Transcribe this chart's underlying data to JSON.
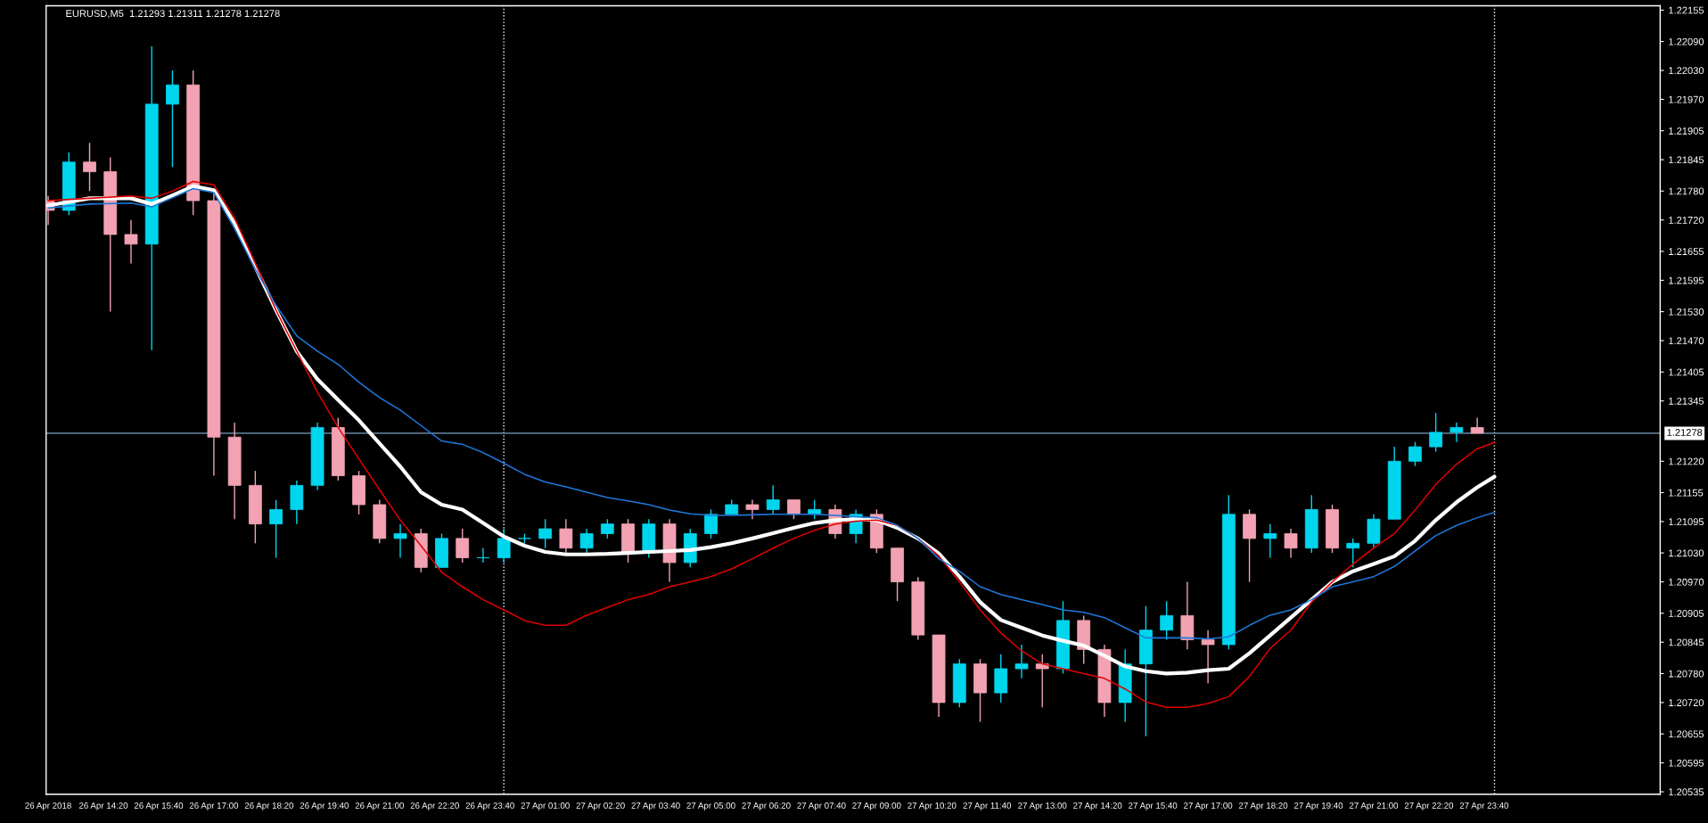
{
  "chart_data": {
    "type": "candlestick",
    "title": "EURUSD,M5  1.21293 1.21311 1.21278 1.21278",
    "x": [
      "2018-04-26T13:00",
      "2018-04-26T13:30",
      "2018-04-26T14:00",
      "2018-04-26T14:30",
      "2018-04-26T15:00",
      "2018-04-26T15:30",
      "2018-04-26T16:00",
      "2018-04-26T16:30",
      "2018-04-26T17:00",
      "2018-04-26T17:30",
      "2018-04-26T18:00",
      "2018-04-26T18:30",
      "2018-04-26T19:00",
      "2018-04-26T19:30",
      "2018-04-26T20:00",
      "2018-04-26T20:30",
      "2018-04-26T21:00",
      "2018-04-26T21:30",
      "2018-04-26T22:00",
      "2018-04-26T22:30",
      "2018-04-26T23:00",
      "2018-04-26T23:30",
      "2018-04-27T00:00",
      "2018-04-27T00:30",
      "2018-04-27T01:00",
      "2018-04-27T01:30",
      "2018-04-27T02:00",
      "2018-04-27T02:30",
      "2018-04-27T03:00",
      "2018-04-27T03:30",
      "2018-04-27T04:00",
      "2018-04-27T04:30",
      "2018-04-27T05:00",
      "2018-04-27T05:30",
      "2018-04-27T06:00",
      "2018-04-27T06:30",
      "2018-04-27T07:00",
      "2018-04-27T07:30",
      "2018-04-27T08:00",
      "2018-04-27T08:30",
      "2018-04-27T09:00",
      "2018-04-27T09:30",
      "2018-04-27T10:00",
      "2018-04-27T10:30",
      "2018-04-27T11:00",
      "2018-04-27T11:30",
      "2018-04-27T12:00",
      "2018-04-27T12:30",
      "2018-04-27T13:00",
      "2018-04-27T13:30",
      "2018-04-27T14:00",
      "2018-04-27T14:30",
      "2018-04-27T15:00",
      "2018-04-27T15:30",
      "2018-04-27T16:00",
      "2018-04-27T16:30",
      "2018-04-27T17:00",
      "2018-04-27T17:30",
      "2018-04-27T18:00",
      "2018-04-27T18:30",
      "2018-04-27T19:00",
      "2018-04-27T19:30",
      "2018-04-27T20:00",
      "2018-04-27T20:30",
      "2018-04-27T21:00",
      "2018-04-27T21:30",
      "2018-04-27T22:00",
      "2018-04-27T22:30",
      "2018-04-27T23:00",
      "2018-04-27T23:30"
    ],
    "ohlc": [
      [
        1.2176,
        1.2177,
        1.2171,
        1.2174
      ],
      [
        1.2174,
        1.2186,
        1.2173,
        1.2184
      ],
      [
        1.2184,
        1.2188,
        1.2178,
        1.2182
      ],
      [
        1.2182,
        1.2185,
        1.2153,
        1.2169
      ],
      [
        1.2169,
        1.2172,
        1.2163,
        1.2167
      ],
      [
        1.2167,
        1.2208,
        1.2145,
        1.2196
      ],
      [
        1.2196,
        1.2203,
        1.2183,
        1.22
      ],
      [
        1.22,
        1.2203,
        1.2173,
        1.2176
      ],
      [
        1.2176,
        1.2178,
        1.2119,
        1.2127
      ],
      [
        1.2127,
        1.213,
        1.211,
        1.2117
      ],
      [
        1.2117,
        1.212,
        1.2105,
        1.2109
      ],
      [
        1.2109,
        1.2114,
        1.2102,
        1.2112
      ],
      [
        1.2112,
        1.2118,
        1.2109,
        1.2117
      ],
      [
        1.2117,
        1.213,
        1.2116,
        1.2129
      ],
      [
        1.2129,
        1.2131,
        1.2118,
        1.2119
      ],
      [
        1.2119,
        1.212,
        1.2111,
        1.2113
      ],
      [
        1.2113,
        1.2114,
        1.2105,
        1.2106
      ],
      [
        1.2106,
        1.2109,
        1.2102,
        1.2107
      ],
      [
        1.2107,
        1.2108,
        1.2099,
        1.21
      ],
      [
        1.21,
        1.2107,
        1.21,
        1.2106
      ],
      [
        1.2106,
        1.2108,
        1.2101,
        1.2102
      ],
      [
        1.2102,
        1.2104,
        1.2101,
        1.2102
      ],
      [
        1.2102,
        1.2108,
        1.2101,
        1.2106
      ],
      [
        1.2106,
        1.2107,
        1.2105,
        1.2106
      ],
      [
        1.2106,
        1.211,
        1.2104,
        1.2108
      ],
      [
        1.2108,
        1.211,
        1.2103,
        1.2104
      ],
      [
        1.2104,
        1.2108,
        1.2103,
        1.2107
      ],
      [
        1.2107,
        1.211,
        1.2106,
        1.2109
      ],
      [
        1.2109,
        1.211,
        1.2101,
        1.2103
      ],
      [
        1.2103,
        1.211,
        1.2102,
        1.2109
      ],
      [
        1.2109,
        1.211,
        1.2097,
        1.2101
      ],
      [
        1.2101,
        1.2108,
        1.21,
        1.2107
      ],
      [
        1.2107,
        1.2112,
        1.2106,
        1.2111
      ],
      [
        1.2111,
        1.2114,
        1.2111,
        1.2113
      ],
      [
        1.2113,
        1.2114,
        1.211,
        1.2112
      ],
      [
        1.2112,
        1.2117,
        1.2111,
        1.2114
      ],
      [
        1.2114,
        1.2114,
        1.211,
        1.2111
      ],
      [
        1.2111,
        1.2114,
        1.211,
        1.2112
      ],
      [
        1.2112,
        1.2113,
        1.2106,
        1.2107
      ],
      [
        1.2107,
        1.2112,
        1.2105,
        1.2111
      ],
      [
        1.2111,
        1.2112,
        1.2103,
        1.2104
      ],
      [
        1.2104,
        1.2104,
        1.2093,
        1.2097
      ],
      [
        1.2097,
        1.2098,
        1.2085,
        1.2086
      ],
      [
        1.2086,
        1.2086,
        1.2069,
        1.2072
      ],
      [
        1.2072,
        1.2081,
        1.2071,
        1.208
      ],
      [
        1.208,
        1.2081,
        1.2068,
        1.2074
      ],
      [
        1.2074,
        1.2082,
        1.2072,
        1.2079
      ],
      [
        1.2079,
        1.2084,
        1.2077,
        1.208
      ],
      [
        1.208,
        1.2082,
        1.2071,
        1.2079
      ],
      [
        1.2079,
        1.2093,
        1.2078,
        1.2089
      ],
      [
        1.2089,
        1.209,
        1.208,
        1.2083
      ],
      [
        1.2083,
        1.2084,
        1.2069,
        1.2072
      ],
      [
        1.2072,
        1.2083,
        1.2068,
        1.208
      ],
      [
        1.208,
        1.2092,
        1.2065,
        1.2087
      ],
      [
        1.2087,
        1.2093,
        1.2085,
        1.209
      ],
      [
        1.209,
        1.2097,
        1.2083,
        1.2085
      ],
      [
        1.2085,
        1.2087,
        1.2076,
        1.2084
      ],
      [
        1.2084,
        1.2115,
        1.2083,
        1.2111
      ],
      [
        1.2111,
        1.2112,
        1.2097,
        1.2106
      ],
      [
        1.2106,
        1.2109,
        1.2102,
        1.2107
      ],
      [
        1.2107,
        1.2108,
        1.2102,
        1.2104
      ],
      [
        1.2104,
        1.2115,
        1.2103,
        1.2112
      ],
      [
        1.2112,
        1.2113,
        1.2103,
        1.2104
      ],
      [
        1.2104,
        1.2106,
        1.21,
        1.2105
      ],
      [
        1.2105,
        1.2111,
        1.2104,
        1.211
      ],
      [
        1.211,
        1.2125,
        1.211,
        1.2122
      ],
      [
        1.2122,
        1.2126,
        1.2121,
        1.2125
      ],
      [
        1.2125,
        1.2132,
        1.2124,
        1.2128
      ],
      [
        1.2128,
        1.213,
        1.2126,
        1.2129
      ],
      [
        1.2129,
        1.2131,
        1.21278,
        1.21278
      ]
    ],
    "colors": [
      "#f2a2b2",
      "#00d5ee",
      "#f2a2b2",
      "#f2a2b2",
      "#f2a2b2",
      "#00d5ee",
      "#00d5ee",
      "#f2a2b2",
      "#f2a2b2",
      "#f2a2b2",
      "#f2a2b2",
      "#00d5ee",
      "#00d5ee",
      "#00d5ee",
      "#f2a2b2",
      "#f2a2b2",
      "#f2a2b2",
      "#00d5ee",
      "#f2a2b2",
      "#00d5ee",
      "#f2a2b2",
      "#00d5ee",
      "#00d5ee",
      "#00d5ee",
      "#00d5ee",
      "#f2a2b2",
      "#00d5ee",
      "#00d5ee",
      "#f2a2b2",
      "#00d5ee",
      "#f2a2b2",
      "#00d5ee",
      "#00d5ee",
      "#00d5ee",
      "#f2a2b2",
      "#00d5ee",
      "#f2a2b2",
      "#00d5ee",
      "#f2a2b2",
      "#00d5ee",
      "#f2a2b2",
      "#f2a2b2",
      "#f2a2b2",
      "#f2a2b2",
      "#00d5ee",
      "#f2a2b2",
      "#00d5ee",
      "#00d5ee",
      "#f2a2b2",
      "#00d5ee",
      "#f2a2b2",
      "#f2a2b2",
      "#00d5ee",
      "#00d5ee",
      "#00d5ee",
      "#f2a2b2",
      "#f2a2b2",
      "#00d5ee",
      "#f2a2b2",
      "#00d5ee",
      "#f2a2b2",
      "#00d5ee",
      "#f2a2b2",
      "#00d5ee",
      "#00d5ee",
      "#00d5ee",
      "#00d5ee",
      "#00d5ee",
      "#00d5ee",
      "#f2a2b2"
    ],
    "series": [
      {
        "type": "line",
        "color": "#e00000",
        "x": [
          "2018-04-26T13:00",
          "2018-04-26T14:00",
          "2018-04-26T15:00",
          "2018-04-26T15:30",
          "2018-04-26T16:00",
          "2018-04-26T16:30",
          "2018-04-26T17:00",
          "2018-04-26T17:30",
          "2018-04-26T18:00",
          "2018-04-26T18:30",
          "2018-04-26T19:00",
          "2018-04-26T19:30",
          "2018-04-26T20:00",
          "2018-04-26T20:30",
          "2018-04-26T21:00",
          "2018-04-26T21:30",
          "2018-04-26T22:00",
          "2018-04-26T22:30",
          "2018-04-26T23:00",
          "2018-04-26T23:30",
          "2018-04-27T00:00",
          "2018-04-27T00:30",
          "2018-04-27T01:00",
          "2018-04-27T01:30",
          "2018-04-27T02:00",
          "2018-04-27T02:30",
          "2018-04-27T03:00",
          "2018-04-27T03:30",
          "2018-04-27T04:00",
          "2018-04-27T04:30",
          "2018-04-27T05:00",
          "2018-04-27T05:30",
          "2018-04-27T06:00",
          "2018-04-27T06:30",
          "2018-04-27T07:00",
          "2018-04-27T07:30",
          "2018-04-27T08:00",
          "2018-04-27T08:30",
          "2018-04-27T09:00",
          "2018-04-27T09:30",
          "2018-04-27T10:00",
          "2018-04-27T10:30",
          "2018-04-27T11:00",
          "2018-04-27T11:30",
          "2018-04-27T12:00",
          "2018-04-27T12:30",
          "2018-04-27T13:00",
          "2018-04-27T13:30",
          "2018-04-27T14:00",
          "2018-04-27T14:30",
          "2018-04-27T15:00",
          "2018-04-27T15:30",
          "2018-04-27T16:00",
          "2018-04-27T16:30",
          "2018-04-27T17:00",
          "2018-04-27T17:30",
          "2018-04-27T18:00",
          "2018-04-27T18:30",
          "2018-04-27T19:00",
          "2018-04-27T19:30",
          "2018-04-27T20:00",
          "2018-04-27T20:30",
          "2018-04-27T21:00",
          "2018-04-27T21:30",
          "2018-04-27T22:00",
          "2018-04-27T22:30",
          "2018-04-27T23:00",
          "2018-04-27T23:30",
          "2018-04-27T23:55"
        ],
        "values": [
          1.2176,
          1.21765,
          1.2177,
          1.21765,
          1.2178,
          1.218,
          1.21793,
          1.21724,
          1.2163,
          1.21533,
          1.21448,
          1.21363,
          1.2129,
          1.21225,
          1.21161,
          1.21098,
          1.21045,
          1.2099,
          1.2096,
          1.20933,
          1.20912,
          1.2089,
          1.2088,
          1.2088,
          1.20901,
          1.20917,
          1.20933,
          1.20944,
          1.2096,
          1.2097,
          1.20981,
          1.20997,
          1.21018,
          1.2104,
          1.2106,
          1.21077,
          1.2109,
          1.21096,
          1.21098,
          1.21087,
          1.2106,
          1.21024,
          1.2097,
          1.20912,
          1.20864,
          1.20827,
          1.208,
          1.2079,
          1.2078,
          1.2077,
          1.20748,
          1.20721,
          1.2071,
          1.2071,
          1.20718,
          1.20732,
          1.20774,
          1.20832,
          1.2087,
          1.20928,
          1.2097,
          1.21007,
          1.2104,
          1.2107,
          1.21119,
          1.21172,
          1.21214,
          1.21246,
          1.21259
        ]
      },
      {
        "type": "line",
        "color": "#ffffff",
        "x": [
          "2018-04-26T13:00",
          "2018-04-26T14:00",
          "2018-04-26T15:00",
          "2018-04-26T15:30",
          "2018-04-26T16:00",
          "2018-04-26T16:30",
          "2018-04-26T17:00",
          "2018-04-26T17:30",
          "2018-04-26T18:00",
          "2018-04-26T18:30",
          "2018-04-26T19:00",
          "2018-04-26T19:30",
          "2018-04-26T20:00",
          "2018-04-26T20:30",
          "2018-04-26T21:00",
          "2018-04-26T21:30",
          "2018-04-26T22:00",
          "2018-04-26T22:30",
          "2018-04-26T23:00",
          "2018-04-26T23:30",
          "2018-04-27T00:00",
          "2018-04-27T00:30",
          "2018-04-27T01:00",
          "2018-04-27T01:30",
          "2018-04-27T02:00",
          "2018-04-27T02:30",
          "2018-04-27T03:00",
          "2018-04-27T03:30",
          "2018-04-27T04:00",
          "2018-04-27T04:30",
          "2018-04-27T05:00",
          "2018-04-27T05:30",
          "2018-04-27T06:00",
          "2018-04-27T06:30",
          "2018-04-27T07:00",
          "2018-04-27T07:30",
          "2018-04-27T08:00",
          "2018-04-27T08:30",
          "2018-04-27T09:00",
          "2018-04-27T09:30",
          "2018-04-27T10:00",
          "2018-04-27T10:30",
          "2018-04-27T11:00",
          "2018-04-27T11:30",
          "2018-04-27T12:00",
          "2018-04-27T12:30",
          "2018-04-27T13:00",
          "2018-04-27T13:30",
          "2018-04-27T14:00",
          "2018-04-27T14:30",
          "2018-04-27T15:00",
          "2018-04-27T15:30",
          "2018-04-27T16:00",
          "2018-04-27T16:30",
          "2018-04-27T17:00",
          "2018-04-27T17:30",
          "2018-04-27T18:00",
          "2018-04-27T18:30",
          "2018-04-27T19:00",
          "2018-04-27T19:30",
          "2018-04-27T20:00",
          "2018-04-27T20:30",
          "2018-04-27T21:00",
          "2018-04-27T21:30",
          "2018-04-27T22:00",
          "2018-04-27T22:30",
          "2018-04-27T23:00",
          "2018-04-27T23:30",
          "2018-04-27T23:55"
        ],
        "values": [
          1.2175,
          1.21765,
          1.21765,
          1.21753,
          1.21771,
          1.2179,
          1.21782,
          1.21713,
          1.21623,
          1.21533,
          1.21448,
          1.2139,
          1.21347,
          1.21305,
          1.21257,
          1.21209,
          1.21156,
          1.2113,
          1.2112,
          1.21092,
          1.21064,
          1.21045,
          1.21032,
          1.21027,
          1.21027,
          1.21028,
          1.2103,
          1.21032,
          1.21034,
          1.21036,
          1.21042,
          1.2105,
          1.2106,
          1.21071,
          1.21082,
          1.21092,
          1.21098,
          1.211,
          1.21098,
          1.21082,
          1.2106,
          1.21029,
          1.20981,
          1.20928,
          1.20891,
          1.20875,
          1.20859,
          1.20848,
          1.20838,
          1.20817,
          1.20795,
          1.20785,
          1.2078,
          1.20782,
          1.20787,
          1.2079,
          1.20822,
          1.20859,
          1.20896,
          1.20933,
          1.2097,
          1.20992,
          1.21007,
          1.21023,
          1.21055,
          1.21098,
          1.21135,
          1.21166,
          1.21188
        ]
      },
      {
        "type": "line",
        "color": "#1e78dc",
        "x": [
          "2018-04-26T13:00",
          "2018-04-26T14:00",
          "2018-04-26T15:00",
          "2018-04-26T15:30",
          "2018-04-26T16:00",
          "2018-04-26T16:30",
          "2018-04-26T17:00",
          "2018-04-26T17:30",
          "2018-04-26T18:00",
          "2018-04-26T18:30",
          "2018-04-26T19:00",
          "2018-04-26T19:30",
          "2018-04-26T20:00",
          "2018-04-26T20:30",
          "2018-04-26T21:00",
          "2018-04-26T21:30",
          "2018-04-26T22:00",
          "2018-04-26T22:30",
          "2018-04-26T23:00",
          "2018-04-26T23:30",
          "2018-04-27T00:00",
          "2018-04-27T00:30",
          "2018-04-27T01:00",
          "2018-04-27T01:30",
          "2018-04-27T02:00",
          "2018-04-27T02:30",
          "2018-04-27T03:00",
          "2018-04-27T03:30",
          "2018-04-27T04:00",
          "2018-04-27T04:30",
          "2018-04-27T05:00",
          "2018-04-27T05:30",
          "2018-04-27T06:00",
          "2018-04-27T06:30",
          "2018-04-27T07:00",
          "2018-04-27T07:30",
          "2018-04-27T08:00",
          "2018-04-27T08:30",
          "2018-04-27T09:00",
          "2018-04-27T09:30",
          "2018-04-27T10:00",
          "2018-04-27T10:30",
          "2018-04-27T11:00",
          "2018-04-27T11:30",
          "2018-04-27T12:00",
          "2018-04-27T12:30",
          "2018-04-27T13:00",
          "2018-04-27T13:30",
          "2018-04-27T14:00",
          "2018-04-27T14:30",
          "2018-04-27T15:00",
          "2018-04-27T15:30",
          "2018-04-27T16:00",
          "2018-04-27T16:30",
          "2018-04-27T17:00",
          "2018-04-27T17:30",
          "2018-04-27T18:00",
          "2018-04-27T18:30",
          "2018-04-27T19:00",
          "2018-04-27T19:30",
          "2018-04-27T20:00",
          "2018-04-27T20:30",
          "2018-04-27T21:00",
          "2018-04-27T21:30",
          "2018-04-27T22:00",
          "2018-04-27T22:30",
          "2018-04-27T23:00",
          "2018-04-27T23:30",
          "2018-04-27T23:55"
        ],
        "values": [
          1.21745,
          1.21753,
          1.21755,
          1.21747,
          1.21766,
          1.21785,
          1.21777,
          1.21702,
          1.21618,
          1.21543,
          1.2148,
          1.21448,
          1.21421,
          1.21384,
          1.21352,
          1.21326,
          1.21294,
          1.21262,
          1.21255,
          1.21238,
          1.21216,
          1.21193,
          1.21177,
          1.21167,
          1.21156,
          1.21145,
          1.21138,
          1.2113,
          1.21119,
          1.21111,
          1.21108,
          1.21108,
          1.21109,
          1.2111,
          1.2111,
          1.2111,
          1.21108,
          1.21105,
          1.21103,
          1.21087,
          1.2106,
          1.21018,
          1.20992,
          1.2096,
          1.20944,
          1.20933,
          1.20923,
          1.20912,
          1.20907,
          1.20896,
          1.20875,
          1.20854,
          1.20854,
          1.20854,
          1.20852,
          1.20856,
          1.2088,
          1.20901,
          1.20912,
          1.20933,
          1.2096,
          1.2097,
          1.20981,
          1.21002,
          1.21034,
          1.21066,
          1.21087,
          1.21103,
          1.21114
        ]
      }
    ],
    "xlim": [
      "2018-04-26T12:57",
      "2018-04-28T03:55"
    ],
    "xticks": [
      {
        "value": "2018-04-26T13:00",
        "label": "26 Apr 2018"
      },
      {
        "value": "2018-04-26T14:20",
        "label": "26 Apr 14:20"
      },
      {
        "value": "2018-04-26T15:40",
        "label": "26 Apr 15:40"
      },
      {
        "value": "2018-04-26T17:00",
        "label": "26 Apr 17:00"
      },
      {
        "value": "2018-04-26T18:20",
        "label": "26 Apr 18:20"
      },
      {
        "value": "2018-04-26T19:40",
        "label": "26 Apr 19:40"
      },
      {
        "value": "2018-04-26T21:00",
        "label": "26 Apr 21:00"
      },
      {
        "value": "2018-04-26T22:20",
        "label": "26 Apr 22:20"
      },
      {
        "value": "2018-04-26T23:40",
        "label": "26 Apr 23:40"
      },
      {
        "value": "2018-04-27T01:00",
        "label": "27 Apr 01:00"
      },
      {
        "value": "2018-04-27T02:20",
        "label": "27 Apr 02:20"
      },
      {
        "value": "2018-04-27T03:40",
        "label": "27 Apr 03:40"
      },
      {
        "value": "2018-04-27T05:00",
        "label": "27 Apr 05:00"
      },
      {
        "value": "2018-04-27T06:20",
        "label": "27 Apr 06:20"
      },
      {
        "value": "2018-04-27T07:40",
        "label": "27 Apr 07:40"
      },
      {
        "value": "2018-04-27T09:00",
        "label": "27 Apr 09:00"
      },
      {
        "value": "2018-04-27T10:20",
        "label": "27 Apr 10:20"
      },
      {
        "value": "2018-04-27T11:40",
        "label": "27 Apr 11:40"
      },
      {
        "value": "2018-04-27T13:00",
        "label": "27 Apr 13:00"
      },
      {
        "value": "2018-04-27T14:20",
        "label": "27 Apr 14:20"
      },
      {
        "value": "2018-04-27T15:40",
        "label": "27 Apr 15:40"
      },
      {
        "value": "2018-04-27T17:00",
        "label": "27 Apr 17:00"
      },
      {
        "value": "2018-04-27T18:20",
        "label": "27 Apr 18:20"
      },
      {
        "value": "2018-04-27T19:40",
        "label": "27 Apr 19:40"
      },
      {
        "value": "2018-04-27T21:00",
        "label": "27 Apr 21:00"
      },
      {
        "value": "2018-04-27T22:20",
        "label": "27 Apr 22:20"
      },
      {
        "value": "2018-04-27T23:40",
        "label": "27 Apr 23:40"
      }
    ],
    "ylim": [
      1.2053,
      1.22164
    ],
    "yticks": [
      {
        "value": 1.22155,
        "label": "1.22155"
      },
      {
        "value": 1.2209,
        "label": "1.22090"
      },
      {
        "value": 1.2203,
        "label": "1.22030"
      },
      {
        "value": 1.2197,
        "label": "1.21970"
      },
      {
        "value": 1.21905,
        "label": "1.21905"
      },
      {
        "value": 1.21845,
        "label": "1.21845"
      },
      {
        "value": 1.2178,
        "label": "1.21780"
      },
      {
        "value": 1.2172,
        "label": "1.21720"
      },
      {
        "value": 1.21655,
        "label": "1.21655"
      },
      {
        "value": 1.21595,
        "label": "1.21595"
      },
      {
        "value": 1.2153,
        "label": "1.21530"
      },
      {
        "value": 1.2147,
        "label": "1.21470"
      },
      {
        "value": 1.21405,
        "label": "1.21405"
      },
      {
        "value": 1.21345,
        "label": "1.21345"
      },
      {
        "value": 1.2122,
        "label": "1.21220"
      },
      {
        "value": 1.21155,
        "label": "1.21155"
      },
      {
        "value": 1.21095,
        "label": "1.21095"
      },
      {
        "value": 1.2103,
        "label": "1.21030"
      },
      {
        "value": 1.2097,
        "label": "1.20970"
      },
      {
        "value": 1.20905,
        "label": "1.20905"
      },
      {
        "value": 1.20845,
        "label": "1.20845"
      },
      {
        "value": 1.2078,
        "label": "1.20780"
      },
      {
        "value": 1.2072,
        "label": "1.20720"
      },
      {
        "value": 1.20655,
        "label": "1.20655"
      },
      {
        "value": 1.20595,
        "label": "1.20595"
      },
      {
        "value": 1.20535,
        "label": "1.20535"
      }
    ],
    "ref_lines": [
      {
        "axis": "x",
        "value": "2018-04-27T00:00",
        "color": "#ffffff",
        "line_style": "dotted"
      },
      {
        "axis": "x",
        "value": "2018-04-27T23:55",
        "color": "#ffffff",
        "line_style": "dotted"
      },
      {
        "axis": "y",
        "value": 1.21278,
        "label": "1.21278",
        "color": "#7f9fc0",
        "line_style": "solid"
      }
    ]
  }
}
